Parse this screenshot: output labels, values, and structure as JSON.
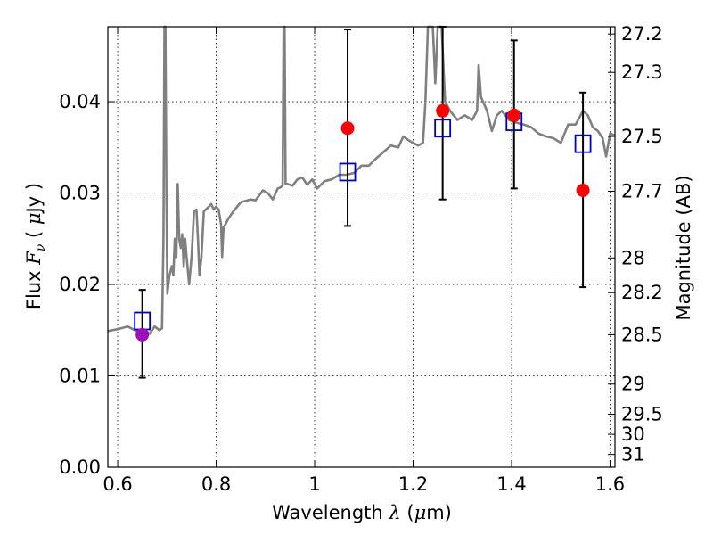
{
  "chart_data": {
    "type": "scatter",
    "xlabel": "Wavelength  λ (μm)",
    "ylabel": "Flux  F_ν  ( μJy )",
    "ylabel_parts": {
      "prefix": "Flux  ",
      "symbol": "F",
      "subscript": "ν",
      "open": "  ( ",
      "mu": "μ",
      "unit": "Jy )"
    },
    "xlabel_parts": {
      "prefix": "Wavelength  ",
      "symbol": "λ",
      "open": " (",
      "mu": "μ",
      "unit": "m)"
    },
    "y2label": "Magnitude (AB)",
    "xlim": [
      0.58,
      1.61
    ],
    "ylim": [
      0.0,
      0.0482
    ],
    "grid": true,
    "x_ticks": [
      {
        "value": 0.6,
        "label": "0.6"
      },
      {
        "value": 0.8,
        "label": "0.8"
      },
      {
        "value": 1.0,
        "label": "1"
      },
      {
        "value": 1.2,
        "label": "1.2"
      },
      {
        "value": 1.4,
        "label": "1.4"
      },
      {
        "value": 1.6,
        "label": "1.6"
      }
    ],
    "y_ticks": [
      {
        "value": 0.0,
        "label": "0.00"
      },
      {
        "value": 0.01,
        "label": "0.01"
      },
      {
        "value": 0.02,
        "label": "0.02"
      },
      {
        "value": 0.03,
        "label": "0.03"
      },
      {
        "value": 0.04,
        "label": "0.04"
      }
    ],
    "y2_ticks": [
      {
        "label": "27.2",
        "flux": 0.0474
      },
      {
        "label": "27.3",
        "flux": 0.0432
      },
      {
        "label": "27.5",
        "flux": 0.0362
      },
      {
        "label": "27.7",
        "flux": 0.0302
      },
      {
        "label": "28",
        "flux": 0.0229
      },
      {
        "label": "28.2",
        "flux": 0.0191
      },
      {
        "label": "28.5",
        "flux": 0.0145
      },
      {
        "label": "29",
        "flux": 0.0091
      },
      {
        "label": "29.5",
        "flux": 0.0058
      },
      {
        "label": "30",
        "flux": 0.0036
      },
      {
        "label": "31",
        "flux": 0.0014
      }
    ],
    "model_spectrum": {
      "color": "#808080",
      "points": [
        [
          0.58,
          0.0149
        ],
        [
          0.6,
          0.0151
        ],
        [
          0.62,
          0.0154
        ],
        [
          0.635,
          0.015
        ],
        [
          0.645,
          0.0147
        ],
        [
          0.655,
          0.015
        ],
        [
          0.665,
          0.0146
        ],
        [
          0.675,
          0.0154
        ],
        [
          0.685,
          0.015
        ],
        [
          0.69,
          0.0152
        ],
        [
          0.693,
          0.025
        ],
        [
          0.695,
          0.0482
        ],
        [
          0.697,
          0.0482
        ],
        [
          0.699,
          0.03
        ],
        [
          0.701,
          0.019
        ],
        [
          0.705,
          0.021
        ],
        [
          0.71,
          0.022
        ],
        [
          0.713,
          0.021
        ],
        [
          0.716,
          0.025
        ],
        [
          0.719,
          0.023
        ],
        [
          0.722,
          0.031
        ],
        [
          0.725,
          0.025
        ],
        [
          0.728,
          0.024
        ],
        [
          0.731,
          0.0255
        ],
        [
          0.734,
          0.022
        ],
        [
          0.737,
          0.025
        ],
        [
          0.74,
          0.023
        ],
        [
          0.745,
          0.02
        ],
        [
          0.75,
          0.023
        ],
        [
          0.755,
          0.028
        ],
        [
          0.76,
          0.0282
        ],
        [
          0.763,
          0.025
        ],
        [
          0.766,
          0.021
        ],
        [
          0.77,
          0.023
        ],
        [
          0.775,
          0.028
        ],
        [
          0.785,
          0.0285
        ],
        [
          0.79,
          0.0288
        ],
        [
          0.795,
          0.0282
        ],
        [
          0.8,
          0.0285
        ],
        [
          0.805,
          0.0282
        ],
        [
          0.81,
          0.0265
        ],
        [
          0.812,
          0.023
        ],
        [
          0.815,
          0.0262
        ],
        [
          0.825,
          0.0272
        ],
        [
          0.835,
          0.028
        ],
        [
          0.85,
          0.029
        ],
        [
          0.87,
          0.0293
        ],
        [
          0.88,
          0.0292
        ],
        [
          0.895,
          0.0303
        ],
        [
          0.905,
          0.03
        ],
        [
          0.915,
          0.0293
        ],
        [
          0.925,
          0.0305
        ],
        [
          0.93,
          0.0306
        ],
        [
          0.935,
          0.0308
        ],
        [
          0.937,
          0.0482
        ],
        [
          0.939,
          0.0482
        ],
        [
          0.941,
          0.031
        ],
        [
          0.945,
          0.031
        ],
        [
          0.955,
          0.0308
        ],
        [
          0.965,
          0.0315
        ],
        [
          0.975,
          0.0317
        ],
        [
          0.985,
          0.0309
        ],
        [
          0.995,
          0.0315
        ],
        [
          1.005,
          0.0305
        ],
        [
          1.02,
          0.0313
        ],
        [
          1.035,
          0.0315
        ],
        [
          1.05,
          0.032
        ],
        [
          1.065,
          0.032
        ],
        [
          1.08,
          0.0322
        ],
        [
          1.095,
          0.033
        ],
        [
          1.11,
          0.033
        ],
        [
          1.125,
          0.0338
        ],
        [
          1.14,
          0.0345
        ],
        [
          1.155,
          0.0352
        ],
        [
          1.17,
          0.035
        ],
        [
          1.18,
          0.0362
        ],
        [
          1.19,
          0.0358
        ],
        [
          1.2,
          0.0355
        ],
        [
          1.21,
          0.0352
        ],
        [
          1.22,
          0.0355
        ],
        [
          1.225,
          0.04
        ],
        [
          1.23,
          0.0482
        ],
        [
          1.24,
          0.0482
        ],
        [
          1.245,
          0.042
        ],
        [
          1.25,
          0.0482
        ],
        [
          1.258,
          0.0482
        ],
        [
          1.265,
          0.04
        ],
        [
          1.275,
          0.039
        ],
        [
          1.29,
          0.038
        ],
        [
          1.305,
          0.0385
        ],
        [
          1.32,
          0.038
        ],
        [
          1.33,
          0.039
        ],
        [
          1.333,
          0.044
        ],
        [
          1.338,
          0.0405
        ],
        [
          1.35,
          0.039
        ],
        [
          1.36,
          0.0368
        ],
        [
          1.37,
          0.0385
        ],
        [
          1.38,
          0.039
        ],
        [
          1.395,
          0.038
        ],
        [
          1.41,
          0.0377
        ],
        [
          1.425,
          0.0375
        ],
        [
          1.44,
          0.0372
        ],
        [
          1.455,
          0.0365
        ],
        [
          1.47,
          0.0362
        ],
        [
          1.485,
          0.036
        ],
        [
          1.5,
          0.0355
        ],
        [
          1.515,
          0.0375
        ],
        [
          1.53,
          0.0375
        ],
        [
          1.545,
          0.039
        ],
        [
          1.555,
          0.0385
        ],
        [
          1.565,
          0.0372
        ],
        [
          1.575,
          0.0368
        ],
        [
          1.585,
          0.036
        ],
        [
          1.592,
          0.034
        ],
        [
          1.6,
          0.0365
        ],
        [
          1.61,
          0.0363
        ]
      ]
    },
    "model_photometry": {
      "marker": "open-square",
      "color": "#0000cc",
      "x": [
        0.65,
        1.067,
        1.26,
        1.405,
        1.545
      ],
      "y": [
        0.016,
        0.0323,
        0.0371,
        0.0378,
        0.0354
      ]
    },
    "observed_photometry": {
      "x": [
        0.65,
        1.067,
        1.26,
        1.405,
        1.545
      ],
      "y": [
        0.0145,
        0.0371,
        0.039,
        0.0385,
        0.0303
      ],
      "yerr_low": [
        0.0098,
        0.0264,
        0.0293,
        0.0305,
        0.0197
      ],
      "yerr_high": [
        0.0194,
        0.0479,
        0.0482,
        0.0467,
        0.041
      ],
      "colors": [
        "#9b10b8",
        "#ff0000",
        "#ff0000",
        "#ff0000",
        "#ff0000"
      ]
    }
  }
}
